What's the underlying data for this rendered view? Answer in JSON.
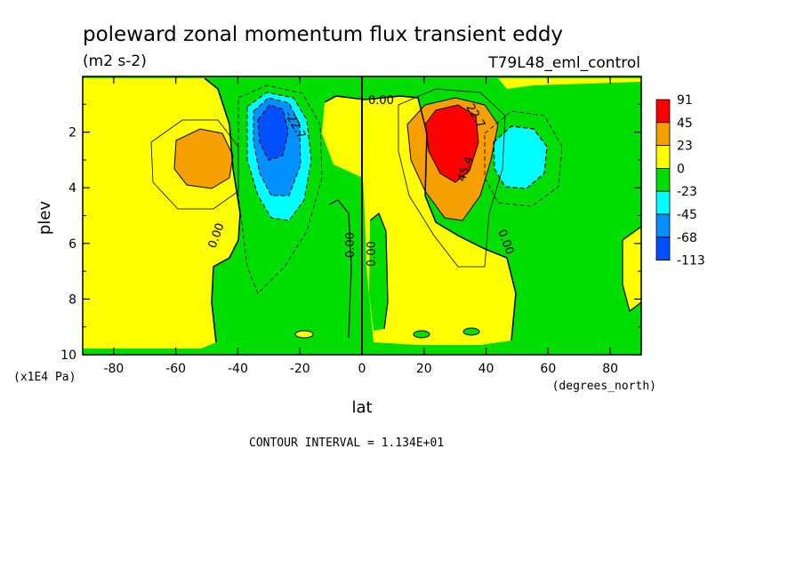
{
  "chart_data": {
    "type": "heatmap",
    "title": "poleward zonal momentum flux transient eddy",
    "units": "(m2 s-2)",
    "run_label": "T79L48_eml_control",
    "xlabel": "lat",
    "xunits": "(degrees_north)",
    "ylabel": "plev",
    "yunits": "(x1E4 Pa)",
    "xlim": [
      -90,
      90
    ],
    "ylim": [
      10,
      0
    ],
    "x_ticks": [
      -80,
      -60,
      -40,
      -20,
      0,
      20,
      40,
      60,
      80
    ],
    "y_ticks": [
      2,
      4,
      6,
      8,
      10
    ],
    "colorbar": {
      "levels": [
        "91",
        "45",
        "23",
        "0",
        "-23",
        "-45",
        "-68",
        "-113"
      ],
      "colors": [
        "#ff0000",
        "#f5a000",
        "#ffff00",
        "#00dd00",
        "#00ffff",
        "#0090ff",
        "#0050ff"
      ]
    },
    "contour_labels": [
      "0.00",
      "22.7",
      "-22.7",
      "45.4",
      "0.00",
      "0.00",
      "0.00",
      "0.00"
    ],
    "contour_interval": "CONTOUR INTERVAL = 1.134E+01",
    "features": [
      {
        "lat": -50,
        "plev": 3.0,
        "value": 23
      },
      {
        "lat": -30,
        "plev": 2.3,
        "value": -68
      },
      {
        "lat": 28,
        "plev": 2.3,
        "value": 91
      },
      {
        "lat": 48,
        "plev": 2.9,
        "value": -45
      }
    ]
  }
}
